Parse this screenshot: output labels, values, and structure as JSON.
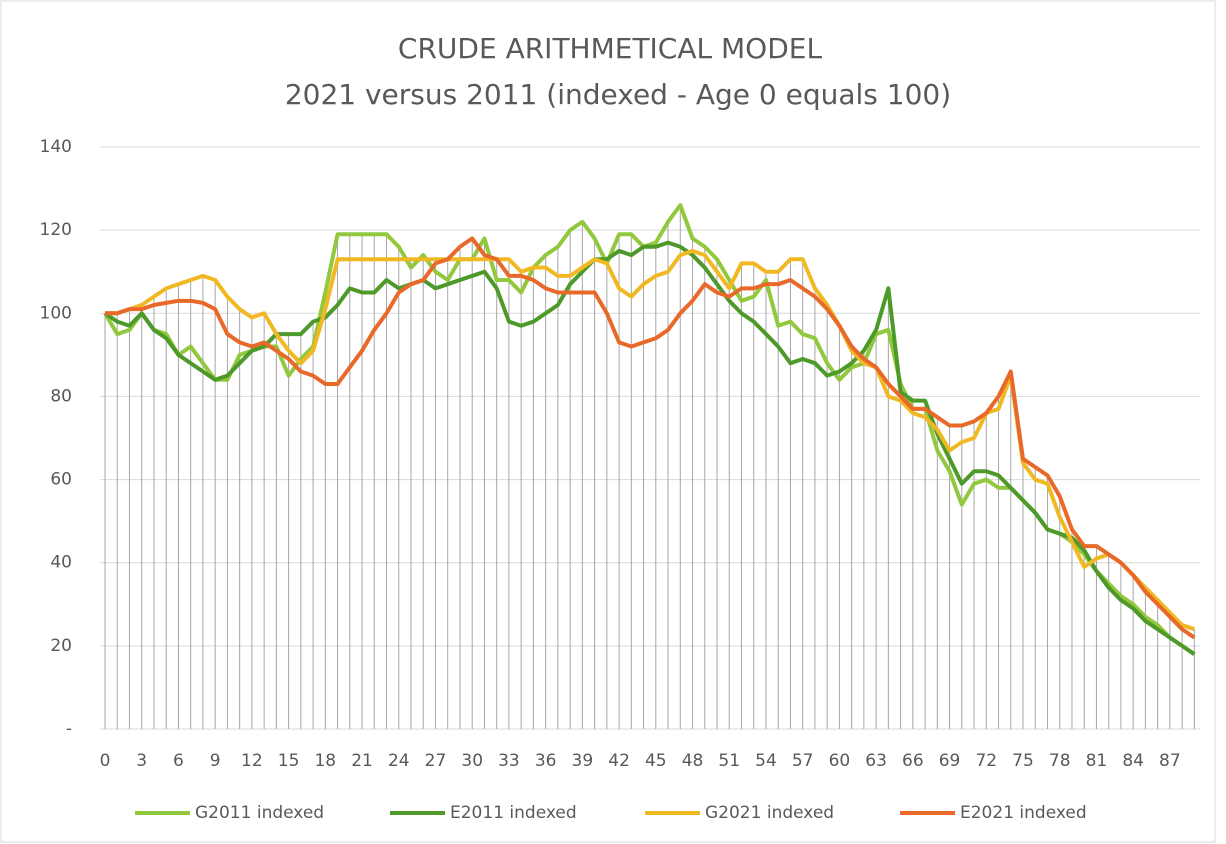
{
  "chart_data": {
    "type": "line",
    "title": "CRUDE ARITHMETICAL MODEL",
    "subtitle": "2021 versus 2011 (indexed - Age 0 equals 100)",
    "categories": [
      "0",
      null,
      null,
      "3",
      null,
      null,
      "6",
      null,
      null,
      "9",
      null,
      null,
      "12",
      null,
      null,
      "15",
      null,
      null,
      "18",
      null,
      null,
      "21",
      null,
      null,
      "24",
      null,
      null,
      "27",
      null,
      null,
      "30",
      null,
      null,
      "33",
      null,
      null,
      "36",
      null,
      null,
      "39",
      null,
      null,
      "42",
      null,
      null,
      "45",
      null,
      null,
      "48",
      null,
      null,
      "51",
      null,
      null,
      "54",
      null,
      null,
      "57",
      null,
      null,
      "60",
      null,
      null,
      "63",
      null,
      null,
      "66",
      null,
      null,
      "69",
      null,
      null,
      "72",
      null,
      null,
      "75",
      null,
      null,
      "78",
      null,
      null,
      "81",
      null,
      null,
      "84",
      null,
      null,
      "87",
      null,
      null
    ],
    "series": [
      {
        "name": "G2011 indexed",
        "color": "#92c83e",
        "values": [
          100,
          95,
          96,
          100,
          96,
          95,
          90,
          92,
          88,
          84,
          84,
          90,
          91,
          92,
          92,
          85,
          89,
          92,
          105,
          119,
          119,
          119,
          119,
          119,
          116,
          111,
          114,
          110,
          108,
          113,
          113,
          118,
          108,
          108,
          105,
          111,
          114,
          116,
          120,
          122,
          118,
          112,
          119,
          119,
          116,
          117,
          122,
          126,
          118,
          116,
          113,
          108,
          103,
          104,
          108,
          97,
          98,
          95,
          94,
          88,
          84,
          87,
          88,
          95,
          96,
          83,
          77,
          77,
          67,
          62,
          54,
          59,
          60,
          58,
          58,
          55,
          52,
          48,
          47,
          45,
          42,
          38,
          35,
          32,
          30,
          27,
          25,
          22,
          20,
          18
        ]
      },
      {
        "name": "E2011 indexed",
        "color": "#4d9a2a",
        "values": [
          100,
          98,
          97,
          100,
          96,
          94,
          90,
          88,
          86,
          84,
          85,
          88,
          91,
          92,
          95,
          95,
          95,
          98,
          99,
          102,
          106,
          105,
          105,
          108,
          106,
          107,
          108,
          106,
          107,
          108,
          109,
          110,
          106,
          98,
          97,
          98,
          100,
          102,
          107,
          110,
          113,
          113,
          115,
          114,
          116,
          116,
          117,
          116,
          114,
          111,
          107,
          103,
          100,
          98,
          95,
          92,
          88,
          89,
          88,
          85,
          86,
          88,
          91,
          96,
          106,
          81,
          79,
          79,
          71,
          65,
          59,
          62,
          62,
          61,
          58,
          55,
          52,
          48,
          47,
          46,
          43,
          38,
          34,
          31,
          29,
          26,
          24,
          22,
          20,
          18
        ]
      },
      {
        "name": "G2021 indexed",
        "color": "#f0b823",
        "values": [
          100,
          100,
          101,
          102,
          104,
          106,
          107,
          108,
          109,
          108,
          104,
          101,
          99,
          100,
          95,
          91,
          88,
          91,
          101,
          113,
          113,
          113,
          113,
          113,
          113,
          113,
          113,
          113,
          113,
          113,
          113,
          113,
          113,
          113,
          110,
          111,
          111,
          109,
          109,
          111,
          113,
          112,
          106,
          104,
          107,
          109,
          110,
          114,
          115,
          114,
          110,
          106,
          112,
          112,
          110,
          110,
          113,
          113,
          106,
          102,
          97,
          91,
          88,
          87,
          80,
          79,
          76,
          75,
          72,
          67,
          69,
          70,
          76,
          77,
          85,
          64,
          60,
          59,
          51,
          45,
          39,
          41,
          42,
          40,
          37,
          34,
          31,
          28,
          25,
          24
        ]
      },
      {
        "name": "E2021 indexed",
        "color": "#e8692a",
        "values": [
          100,
          100,
          101,
          101,
          102,
          102.5,
          103,
          103,
          102.5,
          101,
          95,
          93,
          92,
          93,
          91,
          89,
          86,
          85,
          83,
          83,
          87,
          91,
          96,
          100,
          105,
          107,
          108,
          112,
          113,
          116,
          118,
          114,
          113,
          109,
          109,
          108,
          106,
          105,
          105,
          105,
          105,
          100,
          93,
          92,
          93,
          94,
          96,
          100,
          103,
          107,
          105,
          104,
          106,
          106,
          107,
          107,
          108,
          106,
          104,
          101,
          97,
          92,
          89,
          87,
          83,
          80,
          77,
          77,
          75,
          73,
          73,
          74,
          76,
          80,
          86,
          65,
          63,
          61,
          56,
          48,
          44,
          44,
          42,
          40,
          37,
          33,
          30,
          27,
          24,
          22
        ]
      }
    ],
    "ylim": [
      0,
      140
    ],
    "yticks": [
      {
        "value": 0,
        "label": "-"
      },
      20,
      40,
      60,
      80,
      100,
      120,
      140
    ],
    "grid": true,
    "legend": "bottom"
  }
}
